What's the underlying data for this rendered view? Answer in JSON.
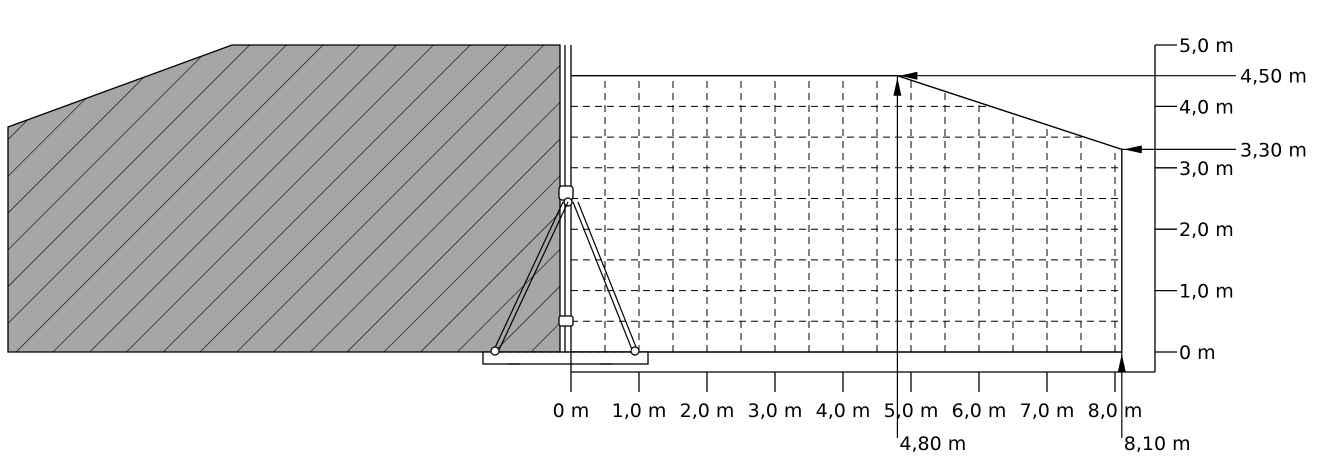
{
  "diagram": {
    "type": "side-view dimension drawing",
    "vertical_scale": {
      "labels": [
        "0 m",
        "1,0 m",
        "2,0 m",
        "3,0 m",
        "4,0 m",
        "5,0 m"
      ],
      "values_m": [
        0,
        1,
        2,
        3,
        4,
        5
      ]
    },
    "horizontal_scale": {
      "labels": [
        "0 m",
        "1,0 m",
        "2,0 m",
        "3,0 m",
        "4,0 m",
        "5,0 m",
        "6,0 m",
        "7,0 m",
        "8,0 m"
      ],
      "values_m": [
        0,
        1,
        2,
        3,
        4,
        5,
        6,
        7,
        8
      ]
    },
    "height_markers": [
      {
        "label": "4,50 m",
        "height_m": 4.5
      },
      {
        "label": "3,30 m",
        "height_m": 3.3
      }
    ],
    "distance_markers": [
      {
        "label": "4,80 m",
        "distance_m": 4.8
      },
      {
        "label": "8,10 m",
        "distance_m": 8.1
      }
    ],
    "colors": {
      "wall_fill": "#a6a6a6",
      "line": "#000000",
      "background": "#ffffff"
    }
  }
}
